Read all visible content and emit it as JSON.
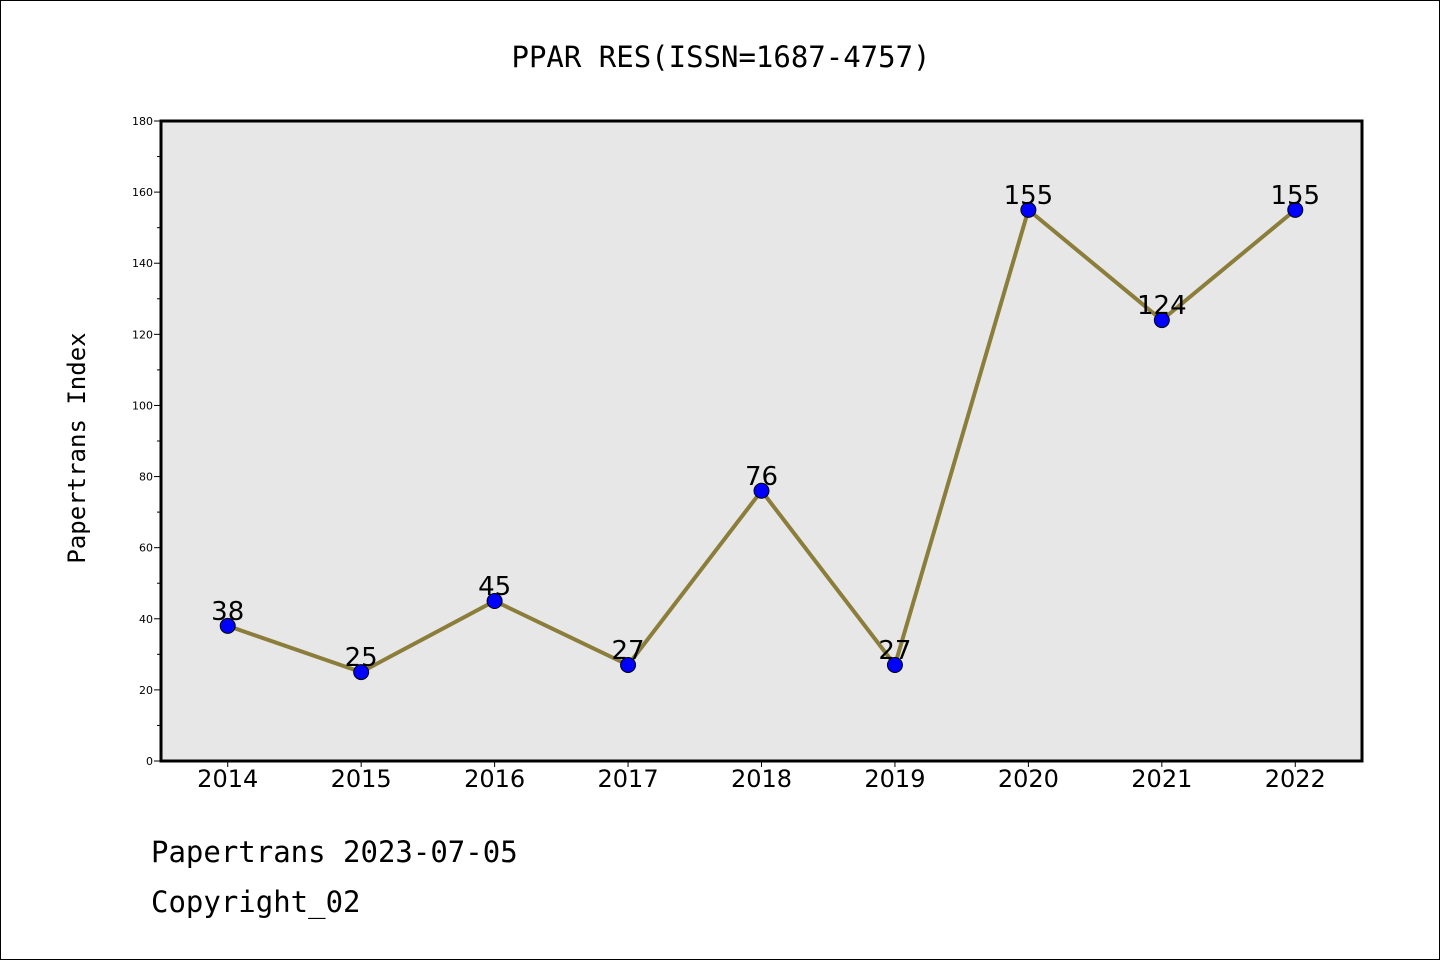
{
  "chart_data": {
    "type": "line",
    "title": "PPAR RES(ISSN=1687-4757)",
    "xlabel": "",
    "ylabel": "Papertrans Index",
    "categories": [
      "2014",
      "2015",
      "2016",
      "2017",
      "2018",
      "2019",
      "2020",
      "2021",
      "2022"
    ],
    "series": [
      {
        "values": [
          38,
          25,
          45,
          27,
          76,
          27,
          155,
          124,
          155
        ]
      }
    ],
    "ylim": [
      0,
      180
    ],
    "yticks": [
      0,
      20,
      40,
      60,
      80,
      100,
      120,
      140,
      160,
      180
    ],
    "grid": false,
    "data_labels": true,
    "colors": {
      "line": "#8B7D3A",
      "marker": "#0000FF",
      "plot_background": "#E7E7E7"
    }
  },
  "footer": {
    "line1": "Papertrans 2023-07-05",
    "line2": "Copyright_02"
  }
}
